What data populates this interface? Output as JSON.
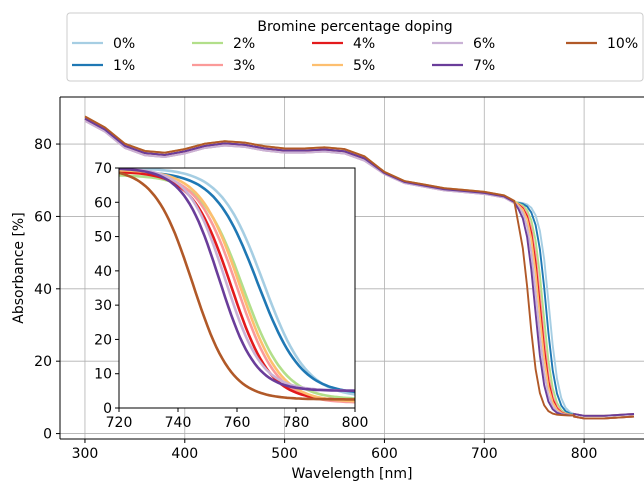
{
  "chart_data": [
    {
      "id": "main",
      "type": "line",
      "title": "",
      "xlabel": "Wavelength [nm]",
      "ylabel": "Absorbance [%]",
      "xlim": [
        275,
        860
      ],
      "ylim": [
        -1.5,
        93
      ],
      "xticks": [
        300,
        400,
        500,
        600,
        700,
        800
      ],
      "yticks": [
        0,
        20,
        40,
        60,
        80
      ],
      "grid": true,
      "legend": {
        "title": "Bromine percentage doping",
        "placement": "top, outside plot area",
        "columns": 5
      },
      "series": [
        {
          "name": "0%",
          "color": "#a6cee3",
          "edge": 765
        },
        {
          "name": "1%",
          "color": "#1f78b4",
          "edge": 762
        },
        {
          "name": "2%",
          "color": "#b2df8a",
          "edge": 759
        },
        {
          "name": "3%",
          "color": "#fb9a99",
          "edge": 757
        },
        {
          "name": "4%",
          "color": "#e31a1c",
          "edge": 756
        },
        {
          "name": "5%",
          "color": "#fdbf6f",
          "edge": 755
        },
        {
          "name": "6%",
          "color": "#cab2d6",
          "edge": 753
        },
        {
          "name": "7%",
          "color": "#6a3d9a",
          "edge": 751
        },
        {
          "name": "10%",
          "color": "#b15928",
          "edge": 745
        }
      ],
      "points": [
        [
          300,
          87
        ],
        [
          320,
          84
        ],
        [
          340,
          79.5
        ],
        [
          360,
          77.5
        ],
        [
          380,
          77
        ],
        [
          400,
          78
        ],
        [
          420,
          79.5
        ],
        [
          440,
          80.2
        ],
        [
          460,
          79.8
        ],
        [
          480,
          78.8
        ],
        [
          500,
          78.2
        ],
        [
          520,
          78.2
        ],
        [
          540,
          78.5
        ],
        [
          560,
          78
        ],
        [
          580,
          76
        ],
        [
          600,
          72
        ],
        [
          620,
          69.5
        ],
        [
          640,
          68.5
        ],
        [
          660,
          67.5
        ],
        [
          680,
          67
        ],
        [
          700,
          66.5
        ],
        [
          720,
          65.5
        ],
        [
          730,
          64
        ]
      ],
      "tail": [
        [
          790,
          5
        ],
        [
          800,
          4.5
        ],
        [
          820,
          4.5
        ],
        [
          850,
          5
        ]
      ]
    },
    {
      "id": "inset",
      "type": "line",
      "title": "",
      "xlabel": "",
      "ylabel": "",
      "xlim": [
        720,
        800
      ],
      "ylim": [
        0,
        70
      ],
      "xticks": [
        720,
        740,
        760,
        780,
        800
      ],
      "yticks": [
        0,
        10,
        20,
        30,
        40,
        50,
        60,
        70
      ],
      "grid": false,
      "series": [
        {
          "name": "0%",
          "color": "#a6cee3",
          "mid": 769,
          "width": 7.3,
          "top": 70,
          "bottom": 3
        },
        {
          "name": "1%",
          "color": "#1f78b4",
          "mid": 767,
          "width": 7.3,
          "top": 69,
          "bottom": 4
        },
        {
          "name": "2%",
          "color": "#b2df8a",
          "mid": 762,
          "width": 7.0,
          "top": 68,
          "bottom": 2.5
        },
        {
          "name": "3%",
          "color": "#fb9a99",
          "mid": 760,
          "width": 6.8,
          "top": 69,
          "bottom": 1.5
        },
        {
          "name": "4%",
          "color": "#e31a1c",
          "mid": 758,
          "width": 6.6,
          "top": 69,
          "bottom": 2.2
        },
        {
          "name": "5%",
          "color": "#fdbf6f",
          "mid": 761,
          "width": 6.8,
          "top": 69.5,
          "bottom": 1.8
        },
        {
          "name": "6%",
          "color": "#cab2d6",
          "mid": 756,
          "width": 6.2,
          "top": 70,
          "bottom": 5
        },
        {
          "name": "7%",
          "color": "#6a3d9a",
          "mid": 754,
          "width": 6.1,
          "top": 70,
          "bottom": 5
        },
        {
          "name": "10%",
          "color": "#b15928",
          "mid": 745,
          "width": 6.5,
          "top": 70,
          "bottom": 2.5
        }
      ]
    }
  ]
}
